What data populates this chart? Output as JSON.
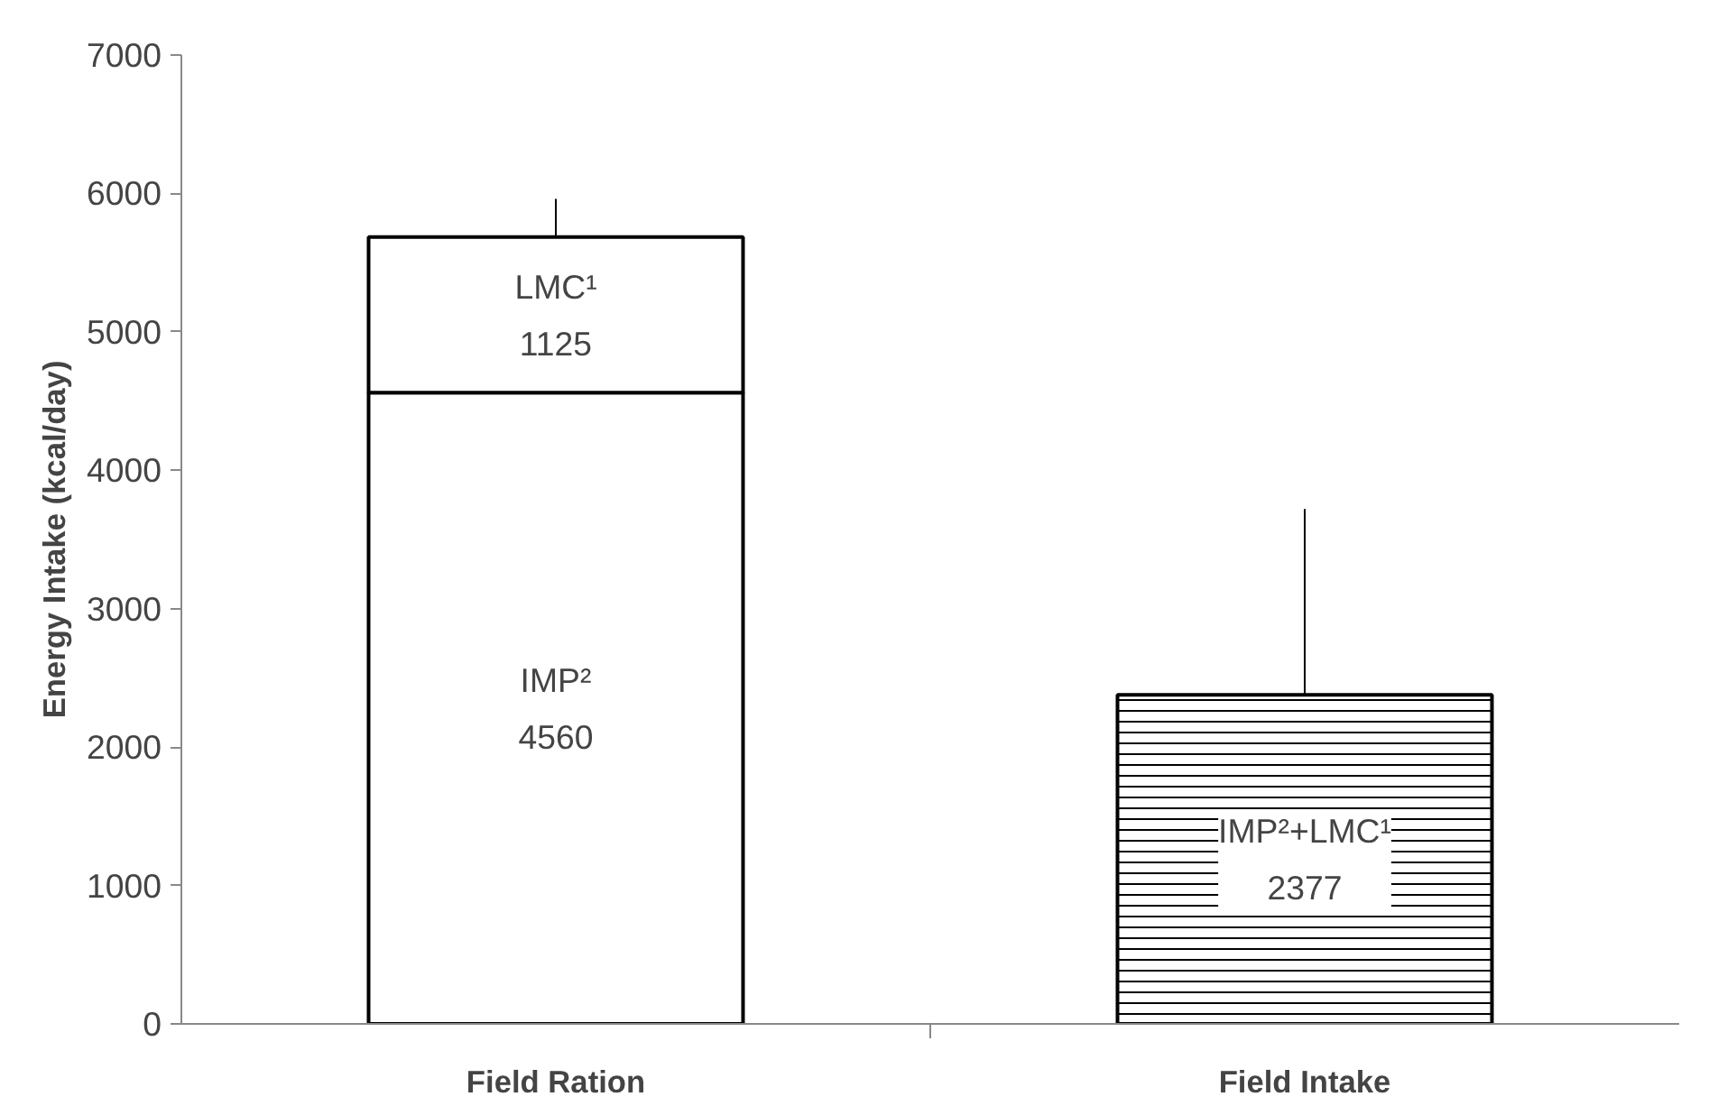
{
  "chart_data": {
    "type": "bar",
    "stacked": true,
    "ylabel": "Energy Intake (kcal/day)",
    "categories": [
      "Field Ration",
      "Field Intake"
    ],
    "series": [
      {
        "name": "IMP²",
        "color": "#ffffff",
        "values": [
          4560,
          null
        ]
      },
      {
        "name": "LMC¹",
        "color": "#ffffff",
        "values": [
          1125,
          null
        ],
        "errors": [
          [
            5685,
            5960
          ],
          null
        ]
      },
      {
        "name": "IMP²+LMC¹",
        "color": "#ffffff",
        "values": [
          null,
          2377
        ],
        "errors": [
          null,
          [
            2377,
            3720
          ]
        ]
      }
    ],
    "data_labels": true,
    "ylim": [
      0,
      7000
    ],
    "yticks": [
      0,
      1000,
      2000,
      3000,
      4000,
      5000,
      6000,
      7000
    ],
    "grid": false
  }
}
